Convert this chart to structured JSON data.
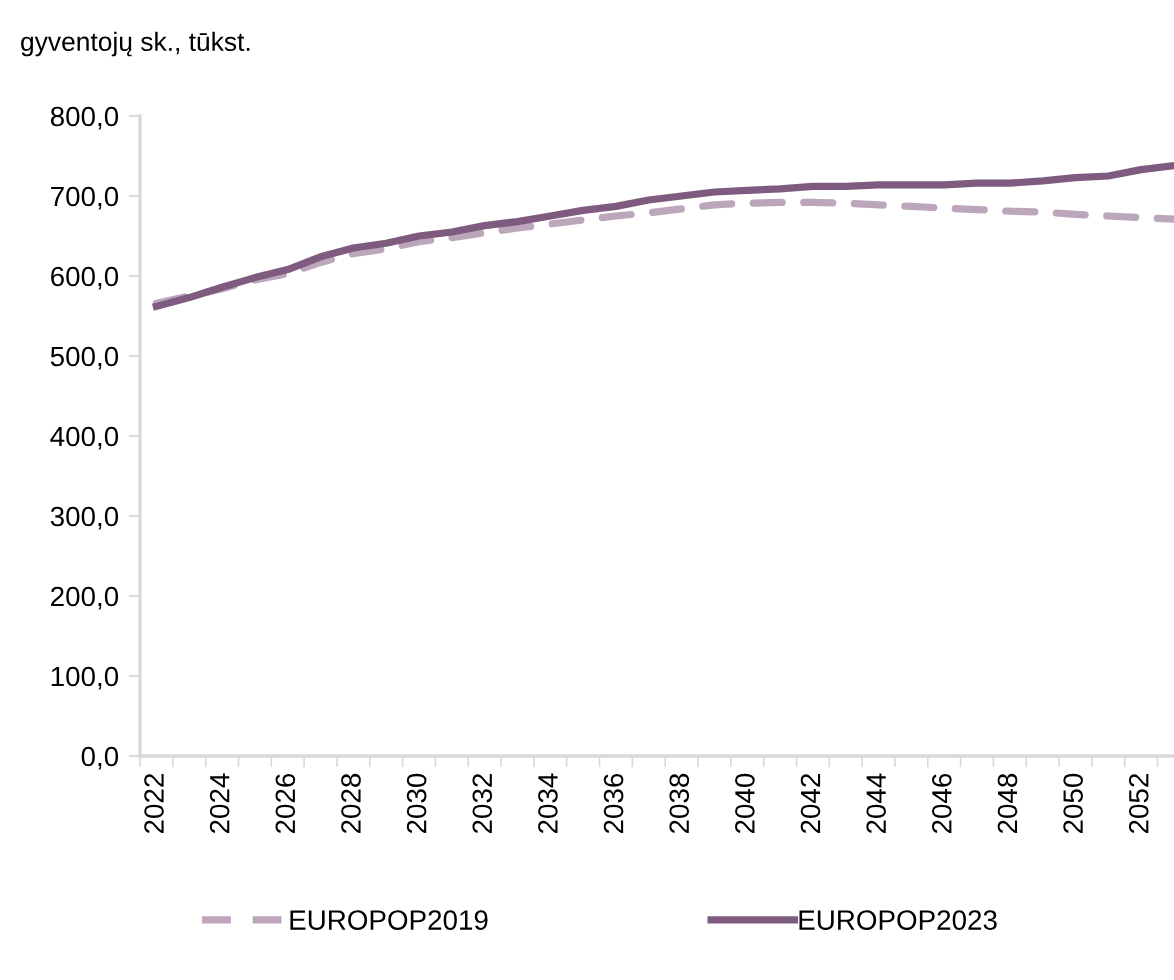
{
  "chart_data": {
    "type": "line",
    "ylabel": "gyventojų sk., tūkst.",
    "categories": [
      "2022",
      null,
      "2024",
      null,
      "2026",
      null,
      "2028",
      null,
      "2030",
      null,
      "2032",
      null,
      "2034",
      null,
      "2036",
      null,
      "2038",
      null,
      "2040",
      null,
      "2042",
      null,
      "2044",
      null,
      "2046",
      null,
      "2048",
      null,
      "2050",
      null,
      "2052",
      null
    ],
    "series": [
      {
        "name": "EUROPOP2019",
        "color": "#bba6bb",
        "line_style": "dashed",
        "values": [
          566,
          575,
          584,
          595,
          603,
          617,
          628,
          634,
          643,
          648,
          654,
          660,
          665,
          670,
          675,
          679,
          684,
          689,
          691,
          692,
          692,
          691,
          689,
          687,
          685,
          683,
          681,
          680,
          677,
          675,
          673,
          671
        ]
      },
      {
        "name": "EUROPOP2023",
        "color": "#7f5c7f",
        "line_style": "solid",
        "values": [
          562,
          573,
          586,
          598,
          608,
          624,
          635,
          641,
          650,
          655,
          663,
          668,
          675,
          682,
          687,
          695,
          700,
          705,
          707,
          709,
          712,
          712,
          714,
          714,
          714,
          716,
          716,
          719,
          723,
          725,
          733,
          738
        ]
      }
    ],
    "ylim": [
      0,
      800
    ],
    "yticks": [
      {
        "value": 0,
        "label": "0,0"
      },
      {
        "value": 100,
        "label": "100,0"
      },
      {
        "value": 200,
        "label": "200,0"
      },
      {
        "value": 300,
        "label": "300,0"
      },
      {
        "value": 400,
        "label": "400,0"
      },
      {
        "value": 500,
        "label": "500,0"
      },
      {
        "value": 600,
        "label": "600,0"
      },
      {
        "value": 700,
        "label": "700,0"
      },
      {
        "value": 800,
        "label": "800,0"
      }
    ],
    "grid": false,
    "legend": "bottom",
    "marker": "none"
  }
}
